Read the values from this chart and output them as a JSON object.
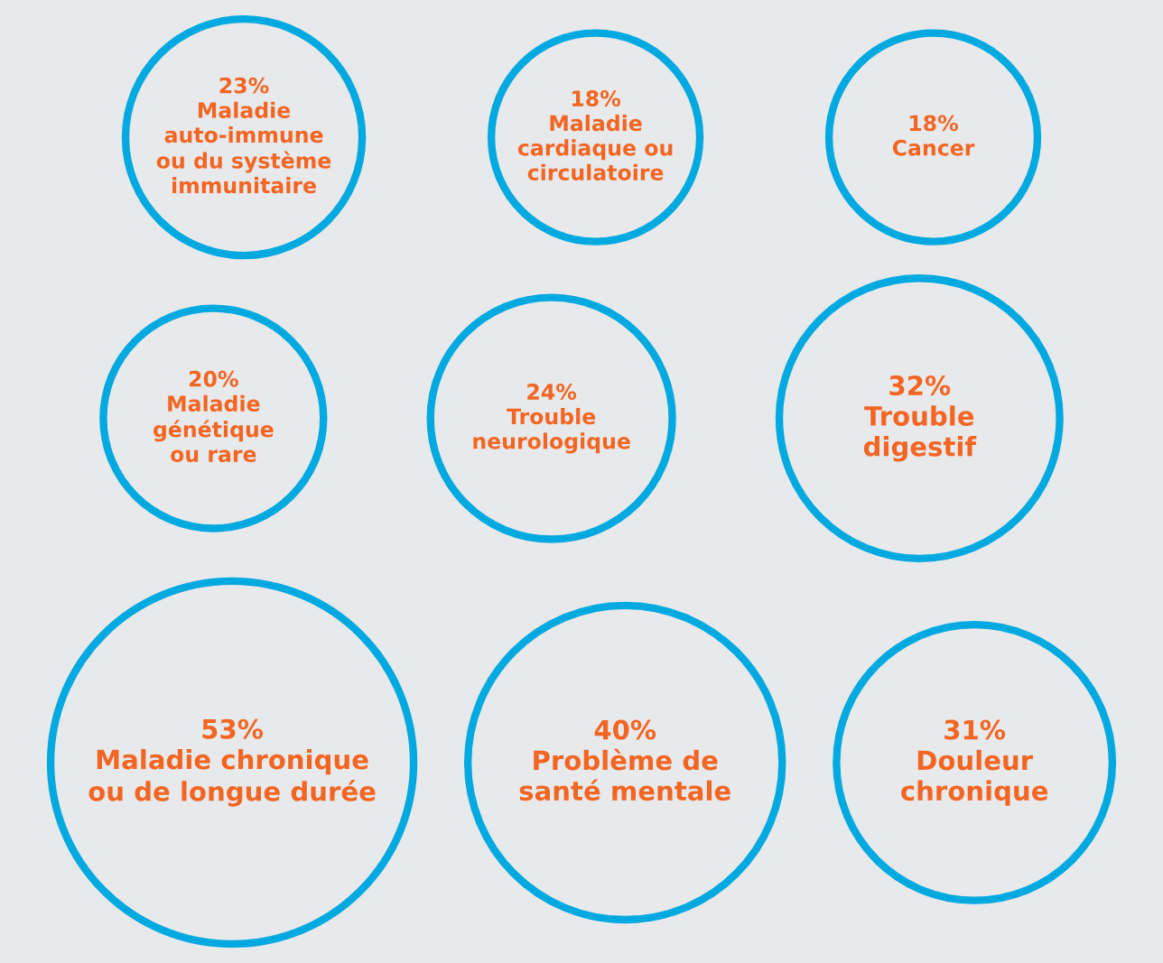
{
  "chart_data": {
    "type": "other",
    "categories": [
      "Maladie\nauto-immune\nou du système\nimmunitaire",
      "Maladie\ncardiaque ou\ncirculatoire",
      "Cancer",
      "Maladie\ngénétique\nou rare",
      "Trouble\nneurologique",
      "Trouble\ndigestif",
      "Maladie chronique\nou de longue durée",
      "Problème de\nsanté mentale",
      "Douleur\nchronique"
    ],
    "values": [
      23,
      18,
      18,
      20,
      24,
      32,
      53,
      40,
      31
    ],
    "value_labels": [
      "23%",
      "18%",
      "18%",
      "20%",
      "24%",
      "32%",
      "53%",
      "40%",
      "31%"
    ],
    "color": "#00a9e0"
  }
}
